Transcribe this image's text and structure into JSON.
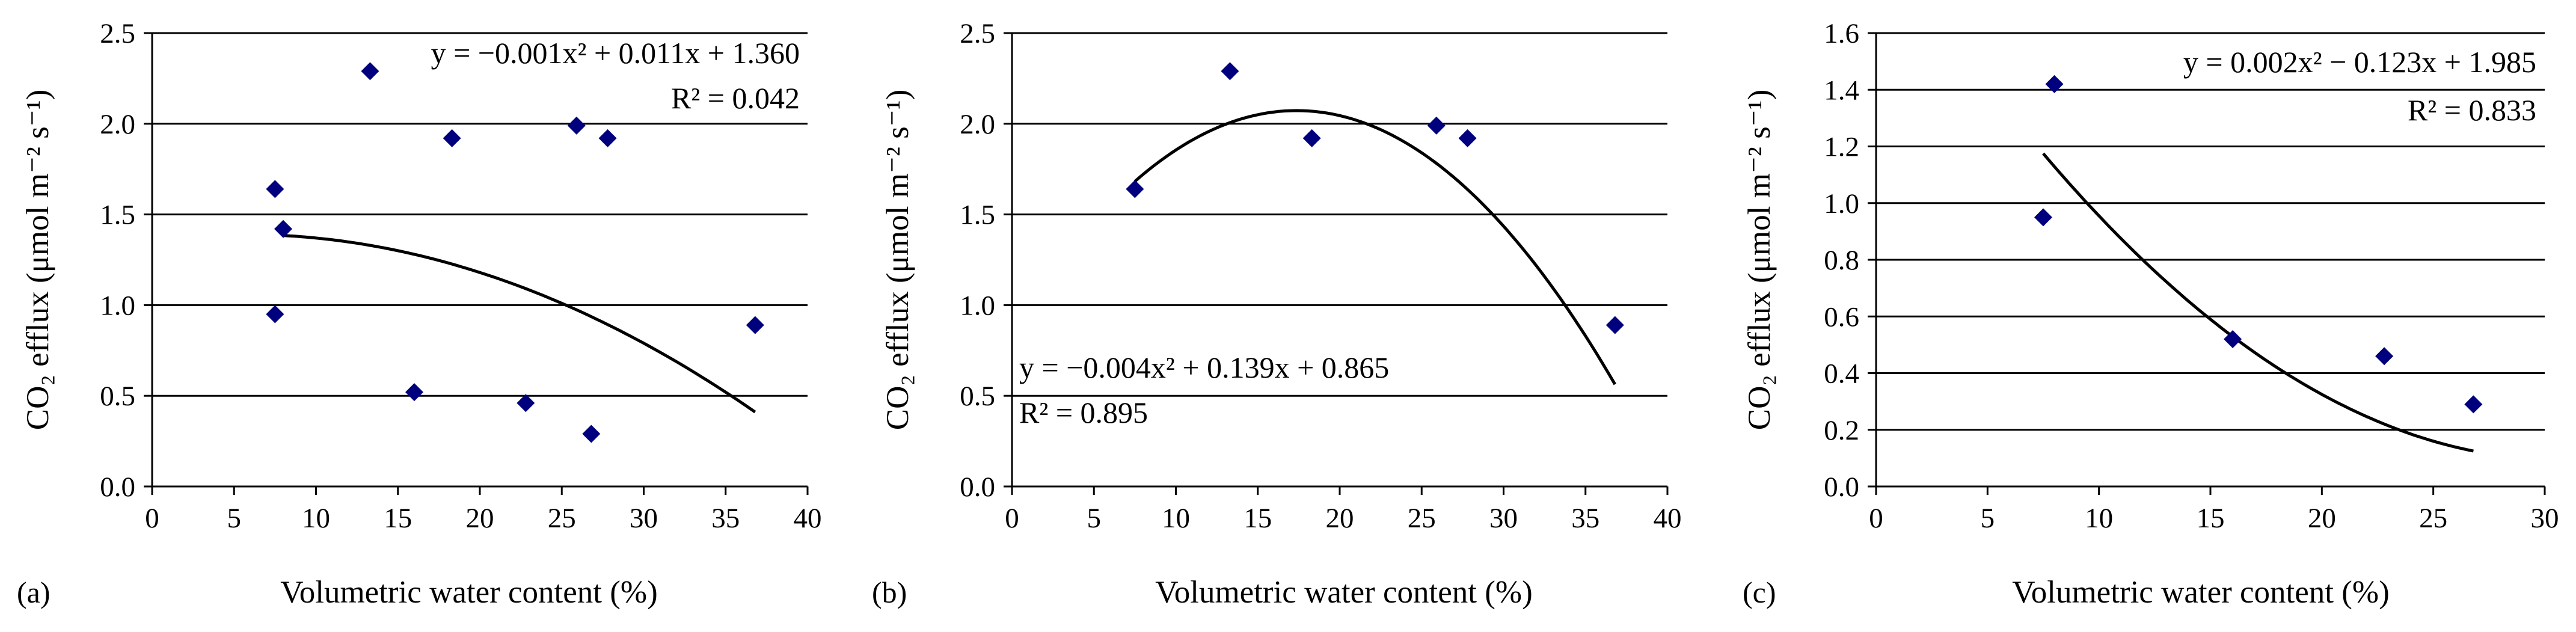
{
  "chart_data": [
    {
      "type": "scatter",
      "panel_label": "(a)",
      "xlabel": "Volumetric water content (%)",
      "ylabel": "CO₂ efflux (μmol m⁻² s⁻¹)",
      "xlim": [
        0,
        40
      ],
      "ylim": [
        0,
        2.5
      ],
      "xticks": [
        "0",
        "5",
        "10",
        "15",
        "20",
        "25",
        "30",
        "35",
        "40"
      ],
      "yticks": [
        "0.0",
        "0.5",
        "1.0",
        "1.5",
        "2.0",
        "2.5"
      ],
      "points": [
        {
          "x": 7.5,
          "y": 1.64
        },
        {
          "x": 8.0,
          "y": 1.42
        },
        {
          "x": 7.5,
          "y": 0.95
        },
        {
          "x": 13.3,
          "y": 2.29
        },
        {
          "x": 16.0,
          "y": 0.52
        },
        {
          "x": 18.3,
          "y": 1.92
        },
        {
          "x": 22.8,
          "y": 0.46
        },
        {
          "x": 25.9,
          "y": 1.99
        },
        {
          "x": 26.8,
          "y": 0.29
        },
        {
          "x": 27.8,
          "y": 1.92
        },
        {
          "x": 36.8,
          "y": 0.89
        }
      ],
      "trendline": {
        "type": "polynomial",
        "coefficients": [
          -0.001,
          0.011,
          1.36
        ],
        "x_range": [
          8,
          36.8
        ]
      },
      "equation": "y = −0.001x² + 0.011x + 1.360",
      "r2": "R² = 0.042"
    },
    {
      "type": "scatter",
      "panel_label": "(b)",
      "xlabel": "Volumetric water content (%)",
      "ylabel": "CO₂ efflux (μmol m⁻² s⁻¹)",
      "xlim": [
        0,
        40
      ],
      "ylim": [
        0,
        2.5
      ],
      "xticks": [
        "0",
        "5",
        "10",
        "15",
        "20",
        "25",
        "30",
        "35",
        "40"
      ],
      "yticks": [
        "0.0",
        "0.5",
        "1.0",
        "1.5",
        "2.0",
        "2.5"
      ],
      "points": [
        {
          "x": 7.5,
          "y": 1.64
        },
        {
          "x": 13.3,
          "y": 2.29
        },
        {
          "x": 18.3,
          "y": 1.92
        },
        {
          "x": 25.9,
          "y": 1.99
        },
        {
          "x": 27.8,
          "y": 1.92
        },
        {
          "x": 36.8,
          "y": 0.89
        }
      ],
      "trendline": {
        "type": "polynomial",
        "coefficients": [
          -0.004,
          0.139,
          0.865
        ],
        "x_range": [
          7.5,
          36.8
        ]
      },
      "equation": "y = −0.004x² + 0.139x + 0.865",
      "r2": "R² = 0.895"
    },
    {
      "type": "scatter",
      "panel_label": "(c)",
      "xlabel": "Volumetric water content (%)",
      "ylabel": "CO₂ efflux (μmol m⁻² s⁻¹)",
      "xlim": [
        0,
        30
      ],
      "ylim": [
        0,
        1.6
      ],
      "xticks": [
        "0",
        "5",
        "10",
        "15",
        "20",
        "25",
        "30"
      ],
      "yticks": [
        "0.0",
        "0.2",
        "0.4",
        "0.6",
        "0.8",
        "1.0",
        "1.2",
        "1.4",
        "1.6"
      ],
      "points": [
        {
          "x": 7.5,
          "y": 0.95
        },
        {
          "x": 8.0,
          "y": 1.42
        },
        {
          "x": 16.0,
          "y": 0.52
        },
        {
          "x": 22.8,
          "y": 0.46
        },
        {
          "x": 26.8,
          "y": 0.29
        }
      ],
      "trendline": {
        "type": "polynomial",
        "coefficients": [
          0.002,
          -0.123,
          1.985
        ],
        "x_range": [
          7.5,
          26.8
        ]
      },
      "equation": "y = 0.002x² − 0.123x + 1.985",
      "r2": "R² = 0.833"
    }
  ]
}
